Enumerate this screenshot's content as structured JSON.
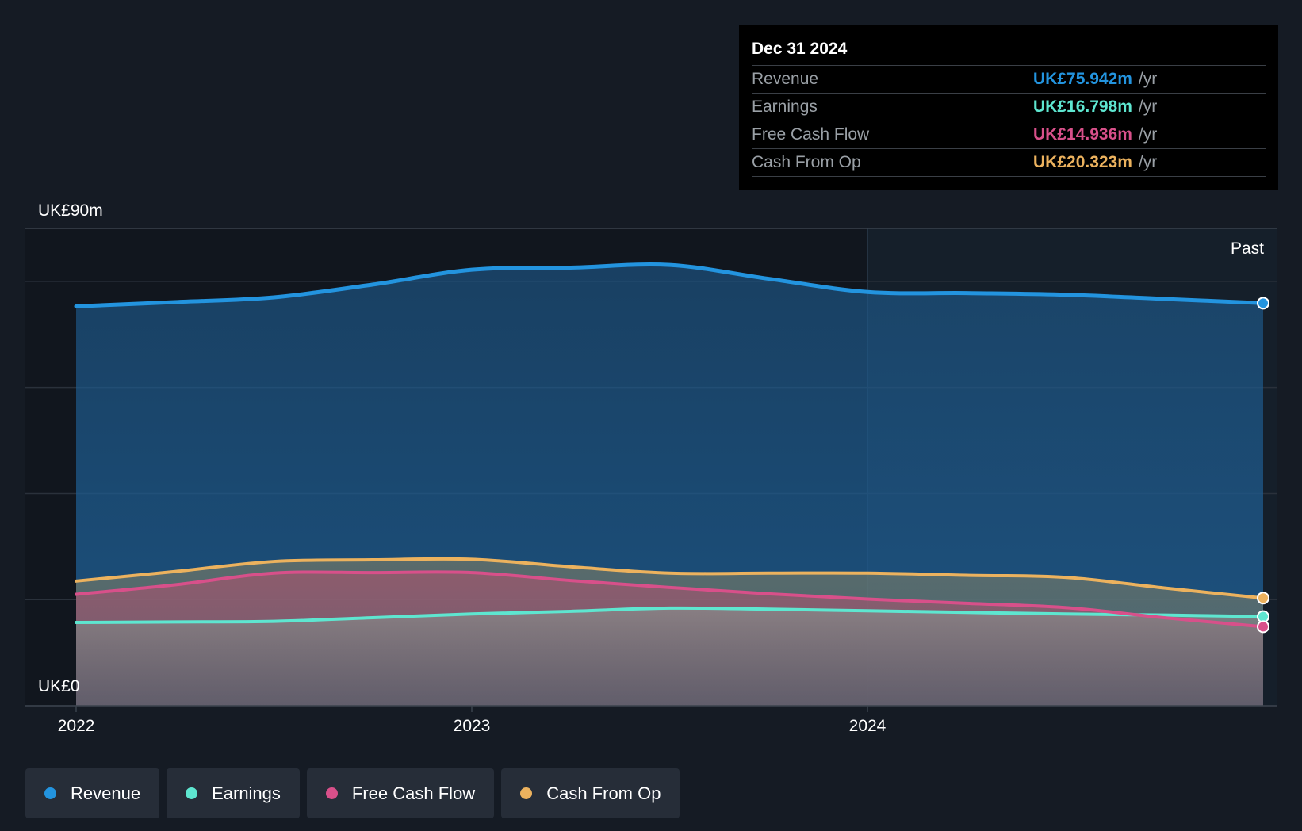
{
  "tooltip": {
    "date": "Dec 31 2024",
    "rows": [
      {
        "label": "Revenue",
        "value": "UK£75.942m",
        "unit": "/yr",
        "color": "#2394df"
      },
      {
        "label": "Earnings",
        "value": "UK£16.798m",
        "unit": "/yr",
        "color": "#5ee6d0"
      },
      {
        "label": "Free Cash Flow",
        "value": "UK£14.936m",
        "unit": "/yr",
        "color": "#d8508a"
      },
      {
        "label": "Cash From Op",
        "value": "UK£20.323m",
        "unit": "/yr",
        "color": "#ecb25e"
      }
    ]
  },
  "legend": [
    {
      "label": "Revenue",
      "color": "#2394df"
    },
    {
      "label": "Earnings",
      "color": "#5ee6d0"
    },
    {
      "label": "Free Cash Flow",
      "color": "#d8508a"
    },
    {
      "label": "Cash From Op",
      "color": "#ecb25e"
    }
  ],
  "chart_data": {
    "type": "area",
    "y_top_label": "UK£90m",
    "y_bottom_label": "UK£0",
    "ylim": [
      0,
      90
    ],
    "past_label": "Past",
    "past_start": 2024.0,
    "x_ticks": [
      {
        "value": 2022.0,
        "label": "2022"
      },
      {
        "value": 2023.0,
        "label": "2023"
      },
      {
        "value": 2024.0,
        "label": "2024"
      }
    ],
    "grid": true,
    "series": [
      {
        "name": "Revenue",
        "color": "#2394df",
        "x": [
          2022.0,
          2022.25,
          2022.5,
          2022.75,
          2023.0,
          2023.25,
          2023.5,
          2023.75,
          2024.0,
          2024.25,
          2024.5,
          2024.75,
          2025.0
        ],
        "values": [
          75.3,
          76.1,
          77.0,
          79.4,
          82.2,
          82.6,
          83.1,
          80.5,
          78.0,
          77.8,
          77.5,
          76.7,
          75.9
        ]
      },
      {
        "name": "Earnings",
        "color": "#5ee6d0",
        "x": [
          2022.0,
          2022.25,
          2022.5,
          2022.75,
          2023.0,
          2023.25,
          2023.5,
          2023.75,
          2024.0,
          2024.25,
          2024.5,
          2024.75,
          2025.0
        ],
        "values": [
          15.7,
          15.8,
          15.9,
          16.6,
          17.3,
          17.8,
          18.4,
          18.2,
          17.9,
          17.6,
          17.3,
          17.1,
          16.8
        ]
      },
      {
        "name": "Free Cash Flow",
        "color": "#d8508a",
        "x": [
          2022.0,
          2022.25,
          2022.5,
          2022.75,
          2023.0,
          2023.25,
          2023.5,
          2023.75,
          2024.0,
          2024.25,
          2024.5,
          2024.75,
          2025.0
        ],
        "values": [
          21.0,
          22.8,
          25.0,
          25.1,
          25.1,
          23.6,
          22.3,
          21.1,
          20.1,
          19.3,
          18.5,
          16.6,
          14.9
        ]
      },
      {
        "name": "Cash From Op",
        "color": "#ecb25e",
        "x": [
          2022.0,
          2022.25,
          2022.5,
          2022.75,
          2023.0,
          2023.25,
          2023.5,
          2023.75,
          2024.0,
          2024.25,
          2024.5,
          2024.75,
          2025.0
        ],
        "values": [
          23.5,
          25.3,
          27.2,
          27.5,
          27.6,
          26.2,
          25.0,
          25.0,
          25.0,
          24.6,
          24.2,
          22.2,
          20.3
        ]
      }
    ]
  }
}
